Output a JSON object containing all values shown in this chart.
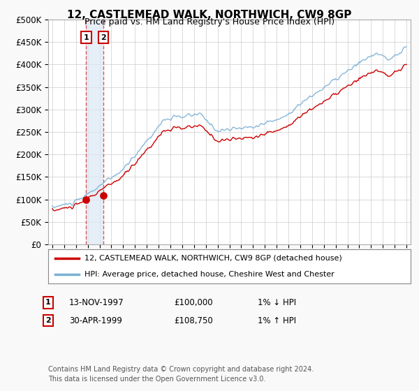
{
  "title": "12, CASTLEMEAD WALK, NORTHWICH, CW9 8GP",
  "subtitle": "Price paid vs. HM Land Registry's House Price Index (HPI)",
  "legend_line1": "12, CASTLEMEAD WALK, NORTHWICH, CW9 8GP (detached house)",
  "legend_line2": "HPI: Average price, detached house, Cheshire West and Chester",
  "annotation1_date": "13-NOV-1997",
  "annotation1_price": "£100,000",
  "annotation1_hpi": "1% ↓ HPI",
  "annotation2_date": "30-APR-1999",
  "annotation2_price": "£108,750",
  "annotation2_hpi": "1% ↑ HPI",
  "footer": "Contains HM Land Registry data © Crown copyright and database right 2024.\nThis data is licensed under the Open Government Licence v3.0.",
  "price_line_color": "#cc0000",
  "hpi_line_color": "#7ab0d4",
  "vline_color": "#dd4444",
  "box_color": "#cc0000",
  "shade_color": "#dce8f5",
  "ylim": [
    0,
    500000
  ],
  "yticks": [
    0,
    50000,
    100000,
    150000,
    200000,
    250000,
    300000,
    350000,
    400000,
    450000,
    500000
  ],
  "sale1_year": 1997.87,
  "sale1_price": 100000,
  "sale2_year": 1999.33,
  "sale2_price": 108750,
  "xmin": 1995.0,
  "xmax": 2025.2,
  "background_color": "#f9f9f9",
  "plot_bg_color": "#ffffff",
  "grid_color": "#cccccc"
}
